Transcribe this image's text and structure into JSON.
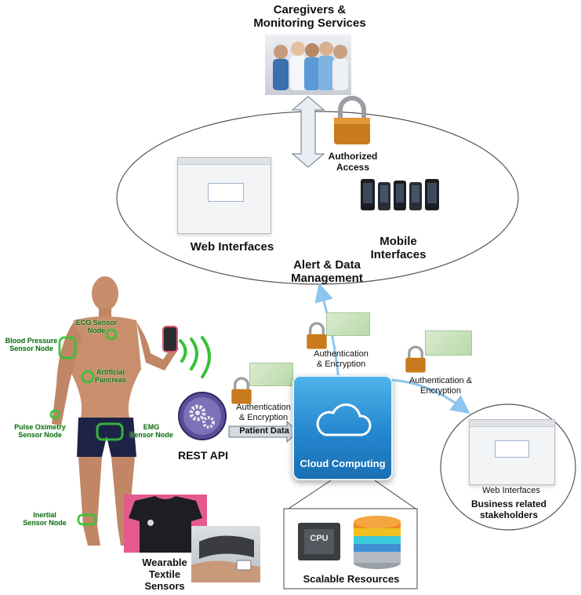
{
  "labels": {
    "caregivers": "Caregivers &\nMonitoring Services",
    "authorized_access": "Authorized\nAccess",
    "web_interfaces": "Web Interfaces",
    "mobile_interfaces": "Mobile\nInterfaces",
    "alert_data": "Alert & Data\nManagement",
    "auth_enc_top": "Authentication\n& Encryption",
    "auth_enc_right": "Authentication &\nEncryption",
    "auth_enc_left": "Authentication\n& Encryption",
    "patient_data": "Patient Data",
    "rest_api": "REST API",
    "cloud_computing": "Cloud Computing",
    "scalable_resources": "Scalable Resources",
    "cpu": "CPU",
    "web_interfaces_small": "Web Interfaces",
    "business_stakeholders": "Business related\nstakeholders",
    "wearable": "Wearable\nTextile\nSensors"
  },
  "sensors": {
    "ecg": "ECG Sensor\nNode",
    "blood_pressure": "Blood Pressure\nSensor Node",
    "artificial_pancreas": "Artificial\nPancreas",
    "pulse_oximetry": "Pulse Oximetry\nSensor Node",
    "emg": "EMG\nSensor Node",
    "inertial": "Inertial\nSensor Node"
  },
  "colors": {
    "sensor_green": "#36c236",
    "arrow_blue": "#8cc6ee",
    "cloud_blue": "#2487cf"
  },
  "icons": [
    "padlock-icon",
    "gears-icon",
    "cpu-chip-icon",
    "database-icon",
    "cloud-icon",
    "key-icon"
  ]
}
